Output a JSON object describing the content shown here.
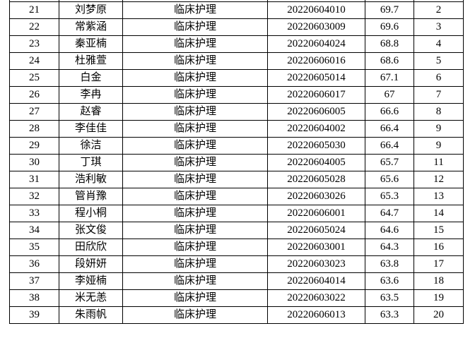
{
  "page": {
    "background_color": "#ffffff"
  },
  "colors": {
    "border": "#000000",
    "text": "#000000"
  },
  "table": {
    "field_order": [
      "no",
      "name",
      "major",
      "candidate_id",
      "score",
      "rank"
    ],
    "rows": [
      {
        "no": "21",
        "name": "刘梦原",
        "major": "临床护理",
        "candidate_id": "20220604010",
        "score": "69.7",
        "rank": "2"
      },
      {
        "no": "22",
        "name": "常紫涵",
        "major": "临床护理",
        "candidate_id": "20220603009",
        "score": "69.6",
        "rank": "3"
      },
      {
        "no": "23",
        "name": "秦亚楠",
        "major": "临床护理",
        "candidate_id": "20220604024",
        "score": "68.8",
        "rank": "4"
      },
      {
        "no": "24",
        "name": "杜雅萱",
        "major": "临床护理",
        "candidate_id": "20220606016",
        "score": "68.6",
        "rank": "5"
      },
      {
        "no": "25",
        "name": "白金",
        "major": "临床护理",
        "candidate_id": "20220605014",
        "score": "67.1",
        "rank": "6"
      },
      {
        "no": "26",
        "name": "李冉",
        "major": "临床护理",
        "candidate_id": "20220606017",
        "score": "67",
        "rank": "7"
      },
      {
        "no": "27",
        "name": "赵睿",
        "major": "临床护理",
        "candidate_id": "20220606005",
        "score": "66.6",
        "rank": "8"
      },
      {
        "no": "28",
        "name": "李佳佳",
        "major": "临床护理",
        "candidate_id": "20220604002",
        "score": "66.4",
        "rank": "9"
      },
      {
        "no": "29",
        "name": "徐洁",
        "major": "临床护理",
        "candidate_id": "20220605030",
        "score": "66.4",
        "rank": "9"
      },
      {
        "no": "30",
        "name": "丁琪",
        "major": "临床护理",
        "candidate_id": "20220604005",
        "score": "65.7",
        "rank": "11"
      },
      {
        "no": "31",
        "name": "浩利敏",
        "major": "临床护理",
        "candidate_id": "20220605028",
        "score": "65.6",
        "rank": "12"
      },
      {
        "no": "32",
        "name": "管肖豫",
        "major": "临床护理",
        "candidate_id": "20220603026",
        "score": "65.3",
        "rank": "13"
      },
      {
        "no": "33",
        "name": "程小桐",
        "major": "临床护理",
        "candidate_id": "20220606001",
        "score": "64.7",
        "rank": "14"
      },
      {
        "no": "34",
        "name": "张文俊",
        "major": "临床护理",
        "candidate_id": "20220605024",
        "score": "64.6",
        "rank": "15"
      },
      {
        "no": "35",
        "name": "田欣欣",
        "major": "临床护理",
        "candidate_id": "20220603001",
        "score": "64.3",
        "rank": "16"
      },
      {
        "no": "36",
        "name": "段妍妍",
        "major": "临床护理",
        "candidate_id": "20220603023",
        "score": "63.8",
        "rank": "17"
      },
      {
        "no": "37",
        "name": "李娅楠",
        "major": "临床护理",
        "candidate_id": "20220604014",
        "score": "63.6",
        "rank": "18"
      },
      {
        "no": "38",
        "name": "米无恙",
        "major": "临床护理",
        "candidate_id": "20220603022",
        "score": "63.5",
        "rank": "19"
      },
      {
        "no": "39",
        "name": "朱雨帆",
        "major": "临床护理",
        "candidate_id": "20220606013",
        "score": "63.3",
        "rank": "20"
      }
    ]
  }
}
